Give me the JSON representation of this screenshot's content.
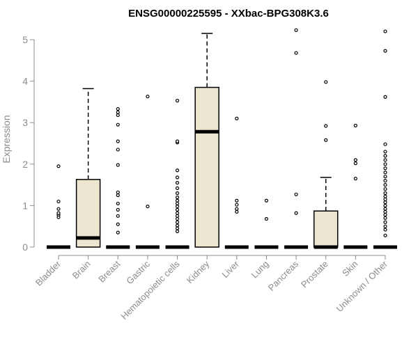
{
  "chart_data": {
    "type": "boxplot",
    "title": "ENSG00000225595 - XXbac-BPG308K3.6",
    "xlabel": "",
    "ylabel": "Expression",
    "ylim": [
      0,
      5.3
    ],
    "yticks": [
      0,
      1,
      2,
      3,
      4,
      5
    ],
    "categories": [
      "Bladder",
      "Brain",
      "Breast",
      "Gastric",
      "Hematopoietic cells",
      "Kidney",
      "Liver",
      "Lung",
      "Pancreas",
      "Prostate",
      "Skin",
      "Unknown / Other"
    ],
    "boxes": [
      {
        "category": "Bladder",
        "q1": 0,
        "median": 0,
        "q3": 0,
        "whisker_low": 0,
        "whisker_high": 0,
        "outliers": [
          0.72,
          0.78,
          0.82,
          0.92,
          1.1,
          1.95
        ]
      },
      {
        "category": "Brain",
        "q1": 0,
        "median": 0.22,
        "q3": 1.63,
        "whisker_low": 0,
        "whisker_high": 3.82,
        "outliers": []
      },
      {
        "category": "Breast",
        "q1": 0,
        "median": 0,
        "q3": 0,
        "whisker_low": 0,
        "whisker_high": 0,
        "outliers": [
          0.35,
          0.55,
          0.75,
          0.9,
          1.05,
          1.25,
          1.32,
          1.98,
          2.35,
          2.55,
          2.95,
          3.18,
          3.25,
          3.33
        ]
      },
      {
        "category": "Gastric",
        "q1": 0,
        "median": 0,
        "q3": 0,
        "whisker_low": 0,
        "whisker_high": 0,
        "outliers": [
          0.98,
          3.63
        ]
      },
      {
        "category": "Hematopoietic cells",
        "q1": 0,
        "median": 0,
        "q3": 0,
        "whisker_low": 0,
        "whisker_high": 0,
        "outliers": [
          0.38,
          0.45,
          0.52,
          0.6,
          0.68,
          0.75,
          0.82,
          0.9,
          0.98,
          1.05,
          1.12,
          1.2,
          1.3,
          1.42,
          1.55,
          1.68,
          1.85,
          2.52,
          2.55,
          3.53
        ]
      },
      {
        "category": "Kidney",
        "q1": 0,
        "median": 2.78,
        "q3": 3.85,
        "whisker_low": 0,
        "whisker_high": 5.15,
        "outliers": []
      },
      {
        "category": "Liver",
        "q1": 0,
        "median": 0,
        "q3": 0,
        "whisker_low": 0,
        "whisker_high": 0,
        "outliers": [
          0.85,
          0.92,
          1.02,
          1.12,
          3.1
        ]
      },
      {
        "category": "Lung",
        "q1": 0,
        "median": 0,
        "q3": 0,
        "whisker_low": 0,
        "whisker_high": 0,
        "outliers": [
          0.68,
          1.12
        ]
      },
      {
        "category": "Pancreas",
        "q1": 0,
        "median": 0,
        "q3": 0,
        "whisker_low": 0,
        "whisker_high": 0,
        "outliers": [
          0.82,
          1.27,
          4.68,
          5.23
        ]
      },
      {
        "category": "Prostate",
        "q1": 0,
        "median": 0,
        "q3": 0.87,
        "whisker_low": 0,
        "whisker_high": 1.68,
        "outliers": [
          2.58,
          2.92,
          3.98
        ]
      },
      {
        "category": "Skin",
        "q1": 0,
        "median": 0,
        "q3": 0,
        "whisker_low": 0,
        "whisker_high": 0,
        "outliers": [
          1.65,
          2.02,
          2.1,
          2.93
        ]
      },
      {
        "category": "Unknown / Other",
        "q1": 0,
        "median": 0,
        "q3": 0,
        "whisker_low": 0,
        "whisker_high": 0,
        "outliers": [
          0.28,
          0.42,
          0.5,
          0.6,
          0.7,
          0.78,
          0.85,
          0.92,
          1.0,
          1.08,
          1.15,
          1.22,
          1.3,
          1.4,
          1.5,
          1.6,
          1.7,
          1.8,
          1.9,
          2.0,
          2.1,
          2.2,
          2.3,
          2.48,
          3.62,
          4.73,
          5.2
        ]
      }
    ]
  }
}
